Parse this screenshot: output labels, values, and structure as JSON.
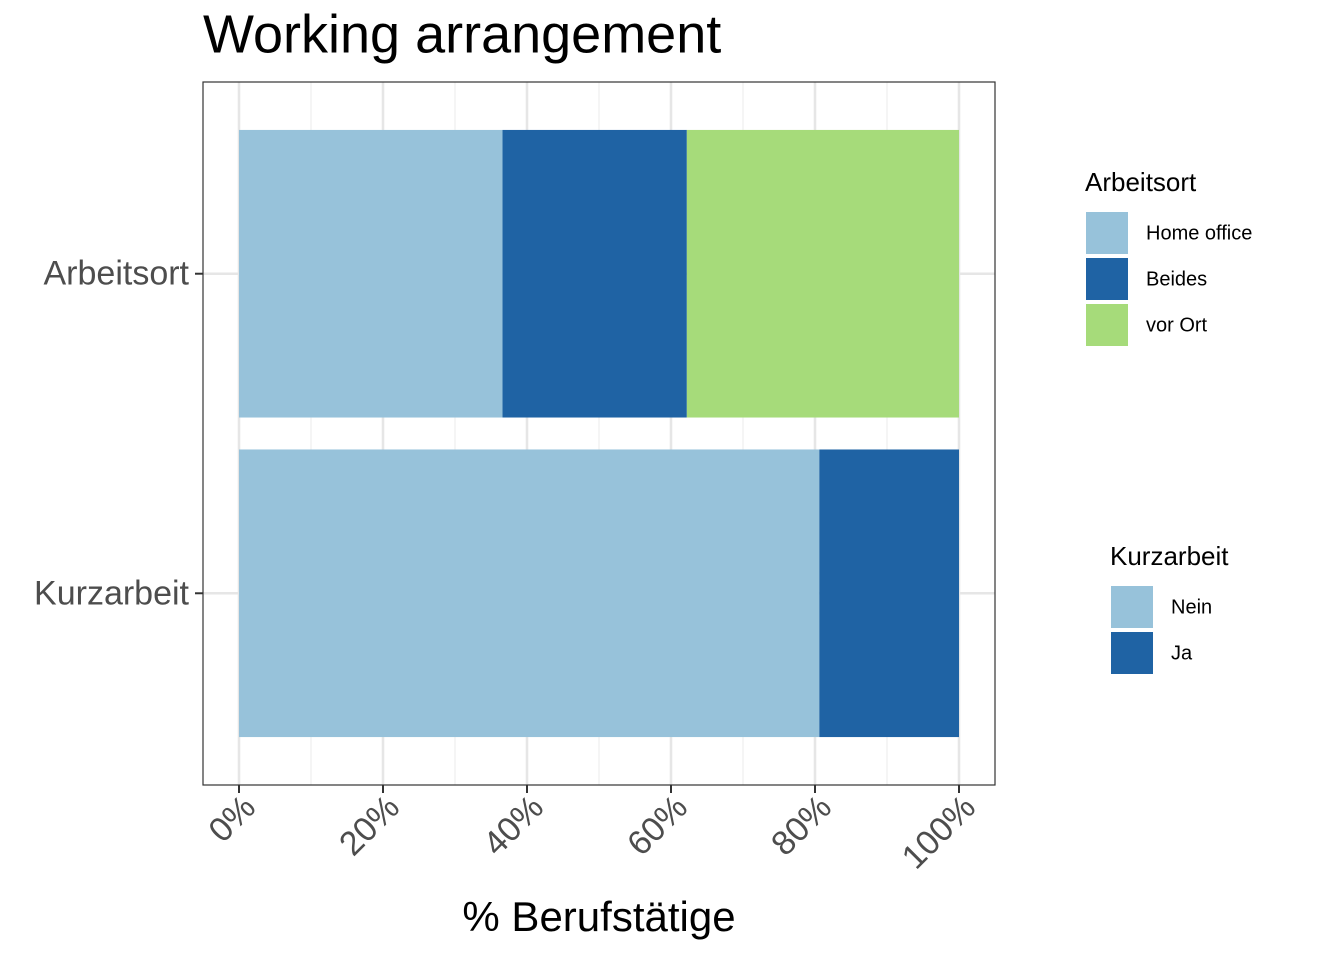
{
  "chart_data": {
    "type": "bar",
    "orientation": "horizontal",
    "stacked": true,
    "title": "Working arrangement",
    "x_label": "% Berufstätige",
    "categories": [
      "Arbeitsort",
      "Kurzarbeit"
    ],
    "series": [
      {
        "name": "Home office",
        "color": "#97c2da",
        "values": [
          36.6,
          null
        ]
      },
      {
        "name": "Beides",
        "color": "#1f63a4",
        "values": [
          25.6,
          null
        ]
      },
      {
        "name": "vor Ort",
        "color": "#a6db7a",
        "values": [
          37.8,
          null
        ]
      },
      {
        "name": "Nein",
        "color": "#97c2da",
        "values": [
          null,
          80.6
        ]
      },
      {
        "name": "Ja",
        "color": "#1f63a4",
        "values": [
          null,
          19.4
        ]
      }
    ],
    "xlim": [
      -5,
      105
    ],
    "xticks": [
      {
        "value": 0,
        "label": "0%"
      },
      {
        "value": 20,
        "label": "20%"
      },
      {
        "value": 40,
        "label": "40%"
      },
      {
        "value": 60,
        "label": "60%"
      },
      {
        "value": 80,
        "label": "80%"
      },
      {
        "value": 100,
        "label": "100%"
      }
    ],
    "minor_xticks": [
      10,
      30,
      50,
      70,
      90
    ],
    "grid": true
  }
}
